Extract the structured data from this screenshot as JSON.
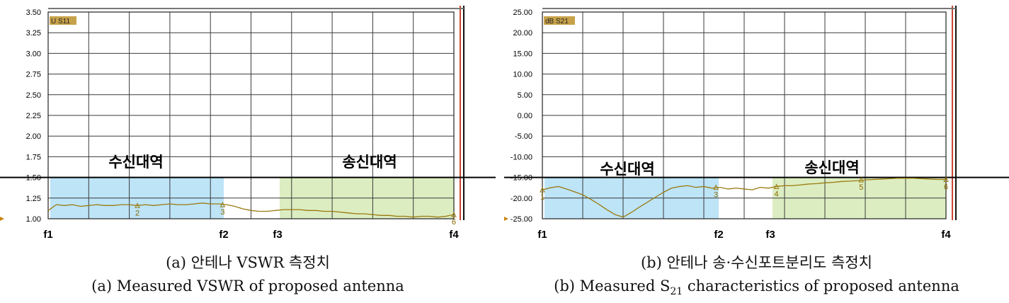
{
  "colors": {
    "rx_band": "#bde4f7",
    "tx_band": "#dcedc1",
    "trace": "#9b7a10",
    "tag_bg": "#c8a24a",
    "grid": "#3a3a3a"
  },
  "captions": {
    "a_ko": "(a) 안테나 VSWR 측정치",
    "a_en": "(a) Measured VSWR of proposed antenna",
    "b_ko": "(b) 안테나 송·수신포트분리도 측정치",
    "b_en_pre": "(b) Measured S",
    "b_en_sub": "21",
    "b_en_post": " characteristics of proposed antenna"
  },
  "chart_data": [
    {
      "type": "line",
      "trace_label": "U S11",
      "ylim": [
        1.0,
        3.5
      ],
      "yticks": [
        "3.50",
        "3.25",
        "3.00",
        "2.75",
        "2.50",
        "2.25",
        "2.00",
        "1.75",
        "1.50",
        "1.25",
        "1.00"
      ],
      "freq_labels": [
        "f1",
        "f2",
        "f3",
        "f4"
      ],
      "bands": [
        {
          "label": "수신대역",
          "from": "f1",
          "to": "f2",
          "ymax": 1.5
        },
        {
          "label": "송신대역",
          "from": "f3",
          "to": "f4",
          "ymax": 1.5
        }
      ],
      "reference_line": 1.5,
      "markers": [
        "2",
        "3",
        "6"
      ],
      "series": [
        {
          "x": [
            0,
            2,
            4,
            6,
            8,
            10,
            12,
            14,
            16,
            18,
            20,
            22,
            24,
            26,
            28,
            30,
            32,
            34,
            36,
            38,
            40,
            42,
            44,
            46,
            48,
            50,
            52,
            54,
            56,
            58,
            60,
            62,
            64,
            66,
            68,
            70,
            72,
            74,
            76,
            78,
            80,
            82,
            84,
            86,
            88,
            90,
            92,
            94,
            96,
            98,
            100
          ],
          "y": [
            1.1,
            1.17,
            1.16,
            1.17,
            1.15,
            1.16,
            1.17,
            1.16,
            1.16,
            1.17,
            1.17,
            1.16,
            1.17,
            1.16,
            1.17,
            1.18,
            1.17,
            1.17,
            1.18,
            1.19,
            1.18,
            1.18,
            1.17,
            1.15,
            1.12,
            1.1,
            1.09,
            1.09,
            1.1,
            1.11,
            1.11,
            1.11,
            1.1,
            1.1,
            1.09,
            1.09,
            1.08,
            1.07,
            1.06,
            1.06,
            1.05,
            1.04,
            1.04,
            1.03,
            1.03,
            1.02,
            1.03,
            1.03,
            1.02,
            1.03,
            1.05
          ]
        }
      ]
    },
    {
      "type": "line",
      "trace_label": "dB S21",
      "ylim": [
        -25.0,
        25.0
      ],
      "yticks": [
        "25.00",
        "20.00",
        "15.00",
        "10.00",
        "5.00",
        "0.00",
        "-5.00",
        "-10.00",
        "-15.00",
        "-20.00",
        "-25.00"
      ],
      "freq_labels": [
        "f1",
        "f2",
        "f3",
        "f4"
      ],
      "bands": [
        {
          "label": "수신대역",
          "from": "f1",
          "to": "f2",
          "ymax": -15
        },
        {
          "label": "송신대역",
          "from": "f3",
          "to": "f4",
          "ymax": -15
        }
      ],
      "reference_line": -15,
      "markers": [
        "1",
        "3",
        "4",
        "5",
        "6"
      ],
      "series": [
        {
          "x": [
            0,
            2,
            4,
            6,
            8,
            10,
            12,
            14,
            16,
            18,
            20,
            22,
            24,
            26,
            28,
            30,
            32,
            34,
            36,
            38,
            40,
            42,
            44,
            46,
            48,
            50,
            52,
            54,
            56,
            58,
            60,
            62,
            64,
            66,
            68,
            70,
            72,
            74,
            76,
            78,
            80,
            82,
            84,
            86,
            88,
            90,
            92,
            94,
            96,
            98,
            100
          ],
          "y": [
            -18.0,
            -17.5,
            -17.2,
            -17.8,
            -18.5,
            -19.2,
            -20.3,
            -21.5,
            -22.8,
            -24.0,
            -24.6,
            -23.5,
            -22.2,
            -21.0,
            -19.8,
            -18.6,
            -17.6,
            -17.2,
            -17.0,
            -17.4,
            -17.2,
            -17.6,
            -17.4,
            -17.8,
            -17.6,
            -17.8,
            -18.0,
            -17.4,
            -17.6,
            -17.2,
            -17.0,
            -17.0,
            -16.8,
            -16.6,
            -16.5,
            -16.3,
            -16.2,
            -16.0,
            -15.9,
            -15.8,
            -15.6,
            -15.5,
            -15.4,
            -15.3,
            -15.2,
            -15.2,
            -15.2,
            -15.3,
            -15.4,
            -15.5,
            -15.5
          ]
        }
      ]
    }
  ]
}
